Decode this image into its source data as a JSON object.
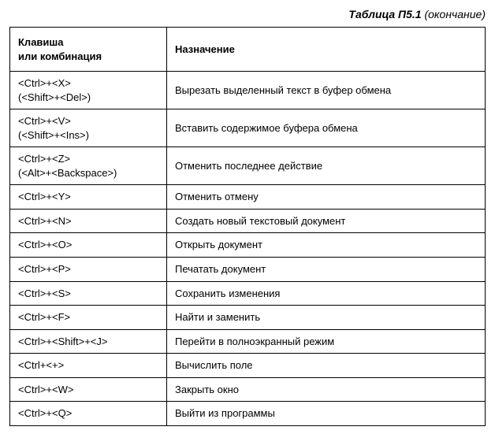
{
  "caption": {
    "title_bold": "Таблица П5.1",
    "suffix_italic": " (окончание)"
  },
  "table": {
    "headers": {
      "key": "Клавиша\nили комбинация",
      "desc": "Назначение"
    },
    "rows": [
      {
        "key": "<Ctrl>+<X>\n(<Shift>+<Del>)",
        "desc": "Вырезать выделенный текст в  буфер обмена"
      },
      {
        "key": "<Ctrl>+<V>\n(<Shift>+<Ins>)",
        "desc": "Вставить содержимое буфера обмена"
      },
      {
        "key": "<Ctrl>+<Z>\n(<Alt>+<Backspace>)",
        "desc": "Отменить последнее действие"
      },
      {
        "key": "<Ctrl>+<Y>",
        "desc": "Отменить отмену"
      },
      {
        "key": "<Ctrl>+<N>",
        "desc": "Создать новый текстовый документ"
      },
      {
        "key": "<Ctrl>+<O>",
        "desc": "Открыть документ"
      },
      {
        "key": "<Ctrl>+<P>",
        "desc": "Печатать документ"
      },
      {
        "key": "<Ctrl>+<S>",
        "desc": "Сохранить изменения"
      },
      {
        "key": "<Ctrl>+<F>",
        "desc": "Найти и заменить"
      },
      {
        "key": "<Ctrl>+<Shift>+<J>",
        "desc": "Перейти в полноэкранный режим"
      },
      {
        "key": "<Ctrl+<+>",
        "desc": "Вычислить поле"
      },
      {
        "key": "<Ctrl>+<W>",
        "desc": "Закрыть окно"
      },
      {
        "key": "<Ctrl>+<Q>",
        "desc": "Выйти из программы"
      }
    ]
  },
  "styling": {
    "font_family": "Arial",
    "caption_fontsize": 14,
    "cell_fontsize": 13,
    "header_fontweight": "bold",
    "border_color": "#000000",
    "background_color": "#ffffff",
    "text_color": "#000000",
    "col_key_width_pct": 33,
    "col_desc_width_pct": 67
  }
}
